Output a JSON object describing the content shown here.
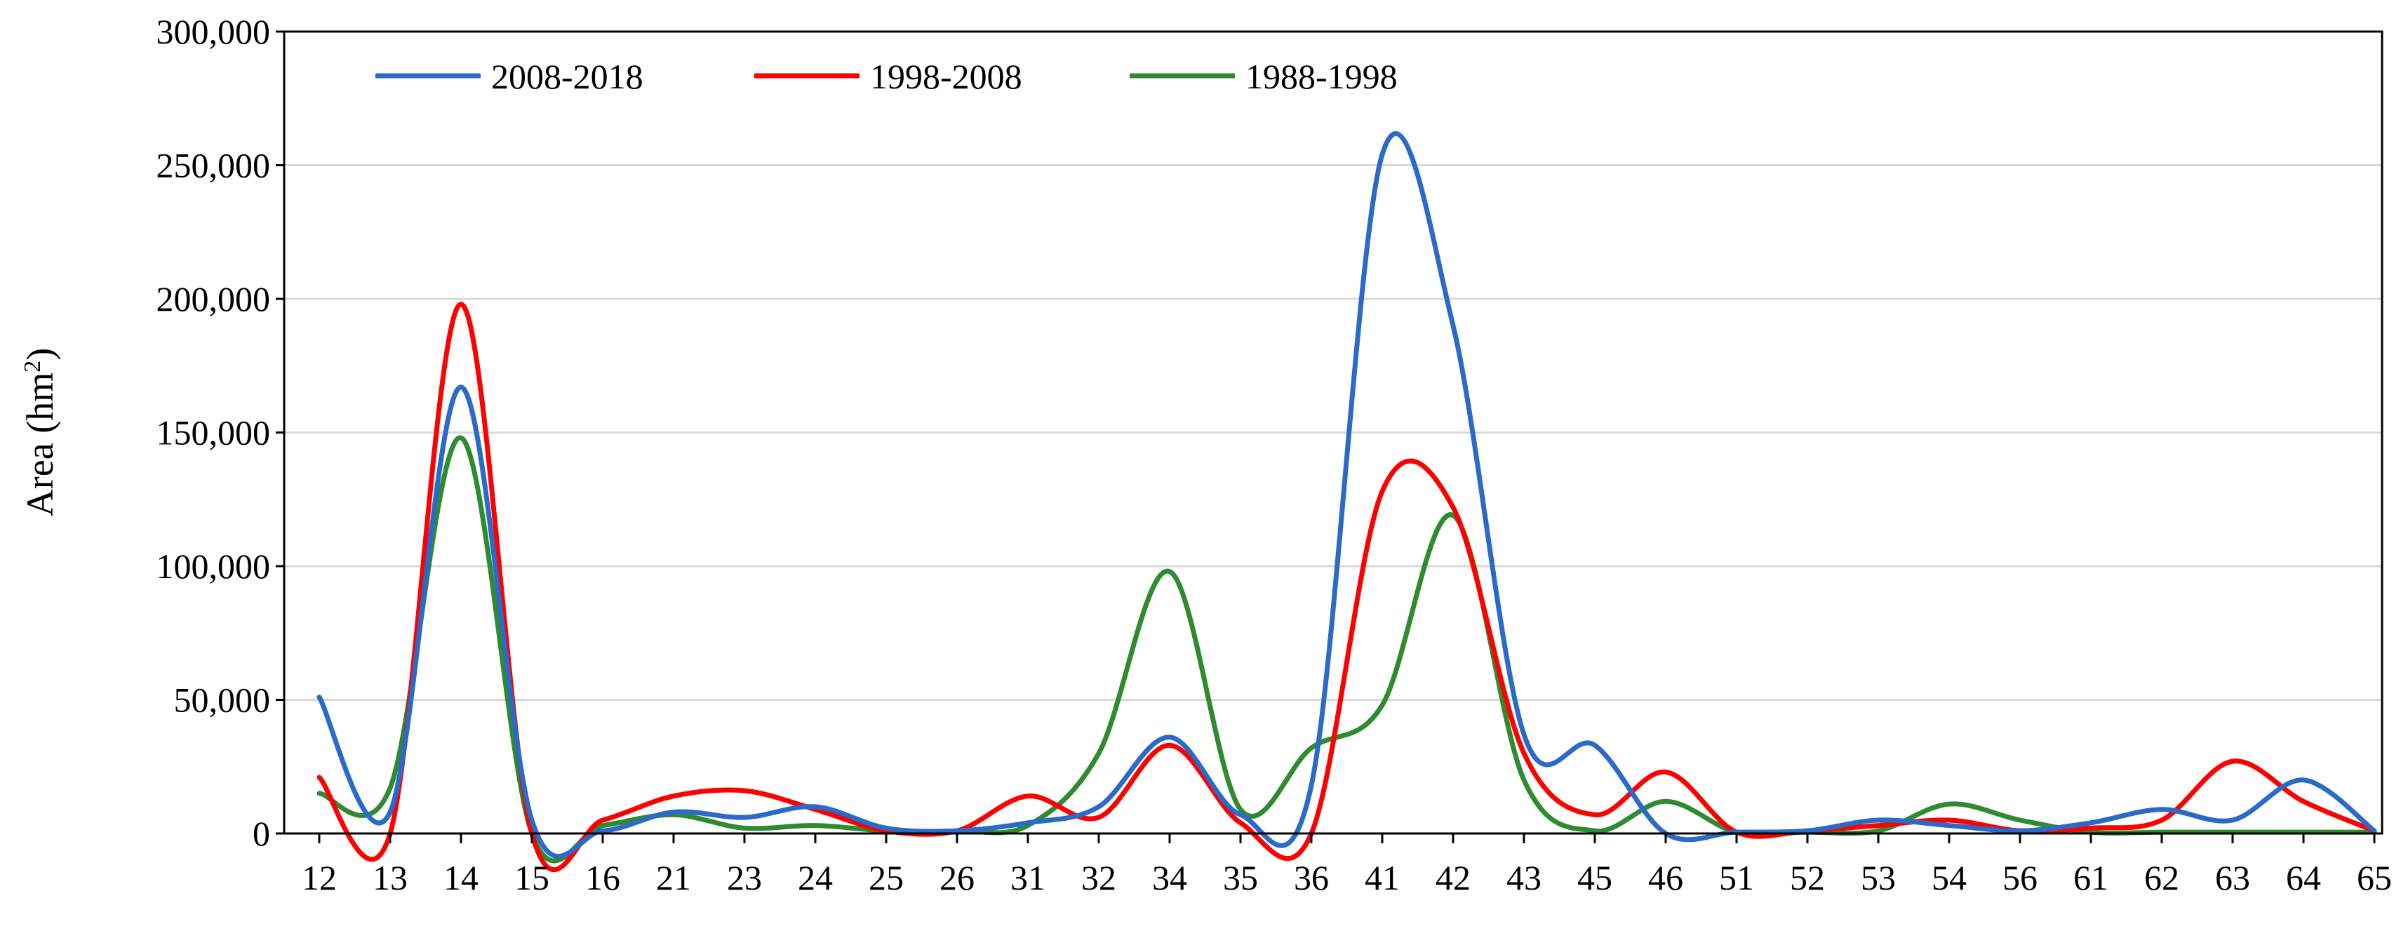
{
  "chart_data": {
    "type": "line",
    "title": "",
    "xlabel": "",
    "ylabel": "Area (hm²)",
    "ylabel_parts": {
      "text": "Area (hm",
      "superscript": "2",
      "close": ")"
    },
    "ylim": [
      0,
      300000
    ],
    "yticks": [
      0,
      50000,
      100000,
      150000,
      200000,
      250000,
      300000
    ],
    "ytick_labels": [
      "0",
      "50,000",
      "100,000",
      "150,000",
      "200,000",
      "250,000",
      "300,000"
    ],
    "grid": true,
    "legend_position": "top-left",
    "categories": [
      "12",
      "13",
      "14",
      "15",
      "16",
      "21",
      "23",
      "24",
      "25",
      "26",
      "31",
      "32",
      "34",
      "35",
      "36",
      "41",
      "42",
      "43",
      "45",
      "46",
      "51",
      "52",
      "53",
      "54",
      "56",
      "61",
      "62",
      "63",
      "64",
      "65"
    ],
    "series": [
      {
        "name": "2008-2018",
        "color": "#2a6ac8",
        "values": [
          51000,
          8000,
          167000,
          5000,
          1000,
          8000,
          6000,
          10000,
          2000,
          1000,
          4000,
          10000,
          36000,
          7000,
          18000,
          254000,
          190000,
          37000,
          33000,
          0,
          500,
          1000,
          5000,
          3000,
          1000,
          4000,
          9000,
          5000,
          20000,
          1000
        ]
      },
      {
        "name": "1998-2008",
        "color": "#ff0000",
        "values": [
          21000,
          0,
          198000,
          0,
          5000,
          14000,
          16000,
          9000,
          1000,
          1000,
          14000,
          6000,
          33000,
          4000,
          0,
          128000,
          122000,
          30000,
          7000,
          23000,
          500,
          1000,
          3000,
          5000,
          1000,
          2000,
          5000,
          27000,
          12000,
          1000
        ]
      },
      {
        "name": "1988-1998",
        "color": "#2e8b2e",
        "values": [
          15000,
          17000,
          148000,
          0,
          3000,
          7000,
          2000,
          3000,
          1000,
          1000,
          3000,
          30000,
          98000,
          9000,
          32000,
          48000,
          119000,
          20000,
          1000,
          12000,
          500,
          500,
          1000,
          11000,
          5000,
          500,
          500,
          500,
          500,
          500
        ]
      }
    ]
  }
}
